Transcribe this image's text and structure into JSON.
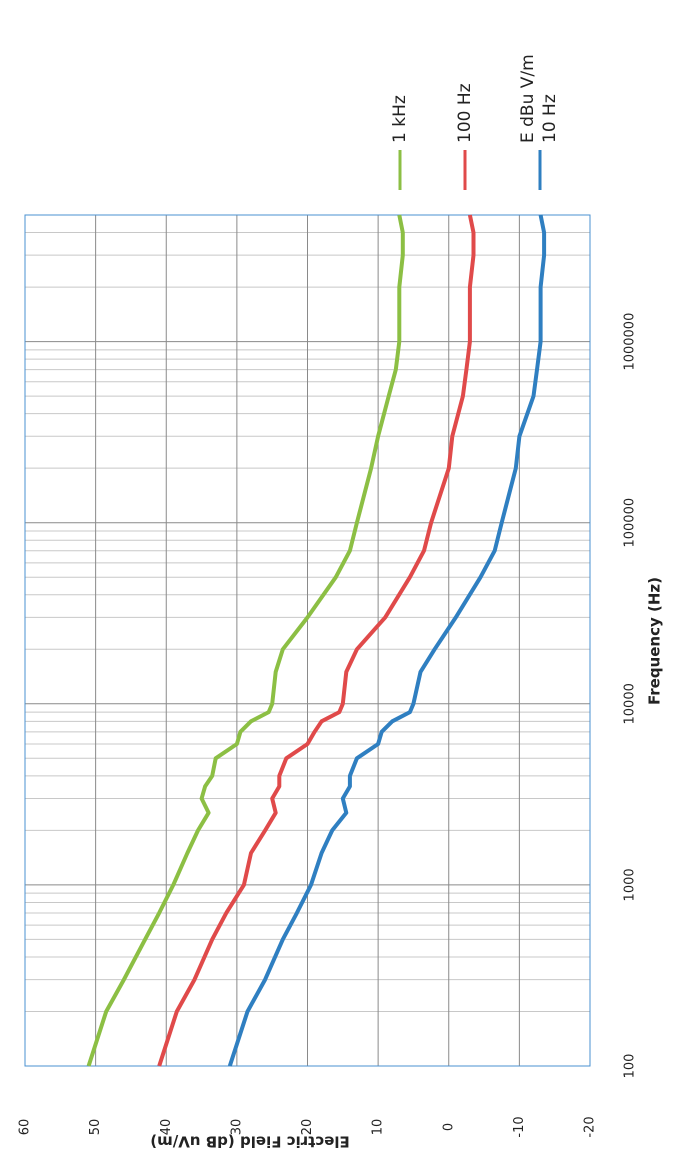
{
  "chart_data": {
    "type": "line",
    "x_label": "Frequency (Hz)",
    "y_label": "Electric Field (dB uV/m)",
    "x": [
      100,
      200,
      300,
      500,
      700,
      1000,
      1500,
      2000,
      2500,
      3000,
      3500,
      4000,
      5000,
      6000,
      7000,
      8000,
      9000,
      10000,
      15000,
      20000,
      30000,
      50000,
      70000,
      100000,
      200000,
      300000,
      500000,
      700000,
      1000000,
      2000000,
      3000000,
      4000000,
      5000000
    ],
    "series": [
      {
        "name": "1 kHz",
        "color": "#8cbf44",
        "values": [
          51,
          48.5,
          46,
          43,
          41,
          39,
          37,
          35.5,
          34,
          35,
          34.5,
          33.5,
          33,
          30,
          29.5,
          28,
          25.5,
          25,
          24.5,
          23.5,
          20,
          16,
          14,
          13,
          11,
          10,
          8.5,
          7.5,
          7,
          7,
          6.5,
          6.5,
          7
        ]
      },
      {
        "name": "100 Hz",
        "color": "#e04a4a",
        "values": [
          41,
          38.5,
          36,
          33.5,
          31.5,
          29,
          28,
          26,
          24.5,
          25,
          24,
          24,
          23,
          20,
          19,
          18,
          15.5,
          15,
          14.5,
          13,
          9,
          5.5,
          3.5,
          2.5,
          0,
          -0.5,
          -2,
          -2.5,
          -3,
          -3,
          -3.5,
          -3.5,
          -3
        ]
      },
      {
        "name": "E dBu V/m 10 Hz",
        "color": "#2f7fc1",
        "values": [
          31,
          28.5,
          26,
          23.5,
          21.5,
          19.5,
          18,
          16.5,
          14.5,
          15,
          14,
          14,
          13,
          10,
          9.5,
          8,
          5.5,
          5,
          4,
          2,
          -1,
          -4.5,
          -6.5,
          -7.5,
          -9.5,
          -10,
          -12,
          -12.5,
          -13,
          -13,
          -13.5,
          -13.5,
          -13
        ]
      }
    ],
    "xlim": [
      100,
      5000000
    ],
    "xticks": [
      100,
      1000,
      10000,
      100000,
      1000000,
      10000000
    ],
    "x_log": true,
    "ylim": [
      -20,
      60
    ],
    "yticks": [
      -20,
      -10,
      0,
      10,
      20,
      30,
      40,
      50,
      60
    ],
    "grid": true,
    "legend": "top"
  }
}
